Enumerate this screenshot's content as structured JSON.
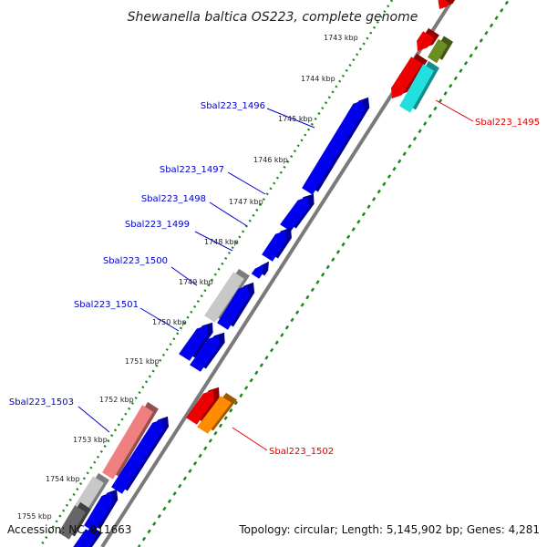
{
  "header": {
    "title": "Shewanella baltica OS223, complete genome"
  },
  "footer": {
    "accession": "Accession: NC_011663",
    "summary": "Topology: circular; Length: 5,145,902 bp; Genes: 4,281"
  },
  "colors": {
    "background": "#ffffff",
    "backbone": "#7a7a7a",
    "ruler_dots": "#1a8a1a",
    "forward_label": "#0000cc",
    "reverse_label": "#dd0000",
    "cds_blue": "#0000ee",
    "rna_red": "#ee0000",
    "cyan": "#22e0e0",
    "olive": "#6b8e23",
    "orange": "#ff8c00",
    "grey_light": "#c8c8c8",
    "grey_dark": "#666666",
    "pink": "#f08080"
  },
  "ruler": {
    "ticks": [
      "1743 kbp",
      "1744 kbp",
      "1745 kbp",
      "1746 kbp",
      "1747 kbp",
      "1748 kbp",
      "1749 kbp",
      "1750 kbp",
      "1751 kbp",
      "1752 kbp",
      "1753 kbp",
      "1754 kbp",
      "1755 kbp"
    ]
  },
  "forward_genes": [
    {
      "label": "Sbal223_1496",
      "color": "cds_blue"
    },
    {
      "label": "Sbal223_1497",
      "color": "cds_blue"
    },
    {
      "label": "Sbal223_1498",
      "color": "cds_blue"
    },
    {
      "label": "Sbal223_1499",
      "color": "cds_blue"
    },
    {
      "label": "Sbal223_1500",
      "color": "cds_blue"
    },
    {
      "label": "Sbal223_1501",
      "color": "cds_blue"
    },
    {
      "label": "Sbal223_1503",
      "color": "cds_blue"
    }
  ],
  "reverse_genes": [
    {
      "label": "Sbal223_1495",
      "color": "cyan"
    },
    {
      "label": "Sbal223_1502",
      "color": "orange"
    }
  ]
}
